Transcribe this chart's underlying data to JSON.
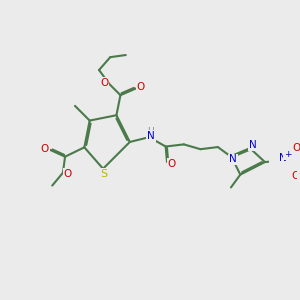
{
  "bg_color": "#ebebeb",
  "bond_color": "#4a7a4a",
  "S_color": "#b8b800",
  "N_color": "#0000cc",
  "O_color": "#cc0000",
  "H_color": "#888899",
  "lw": 1.5,
  "xlim": [
    0,
    10
  ],
  "ylim": [
    0,
    10
  ]
}
